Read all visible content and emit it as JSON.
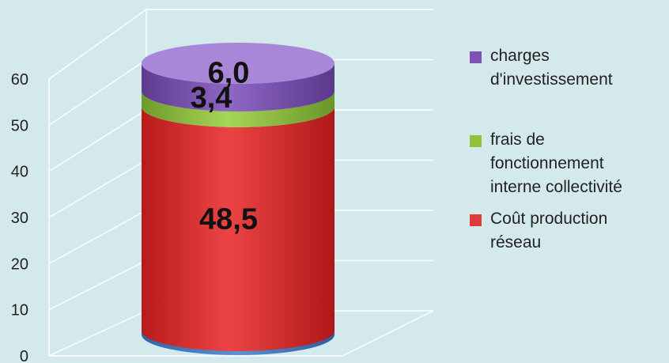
{
  "chart_data": {
    "type": "bar",
    "style": "stacked-3d-cylinder",
    "title": "",
    "xlabel": "",
    "ylabel": "",
    "ylim": [
      0,
      60
    ],
    "y_ticks": [
      "0",
      "10",
      "20",
      "30",
      "40",
      "50",
      "60"
    ],
    "grid": true,
    "legend_position": "right",
    "series": [
      {
        "name": "Coût production réseau",
        "value": 48.5,
        "label": "48,5",
        "color": "#e03b3b"
      },
      {
        "name": "frais de fonctionnement interne collectivité",
        "value": 3.4,
        "label": "3,4",
        "color": "#8fc13f"
      },
      {
        "name": "charges d'investissement",
        "value": 6.0,
        "label": "6,0",
        "color": "#7d53b5"
      }
    ],
    "legend": [
      {
        "lines": [
          "charges",
          "d'investissement"
        ],
        "color": "#7d53b5"
      },
      {
        "lines": [
          "frais de",
          "fonctionnement",
          "interne collectivité"
        ],
        "color": "#8fc13f"
      },
      {
        "lines": [
          "Coût production",
          "réseau"
        ],
        "color": "#e03b3b"
      }
    ]
  }
}
